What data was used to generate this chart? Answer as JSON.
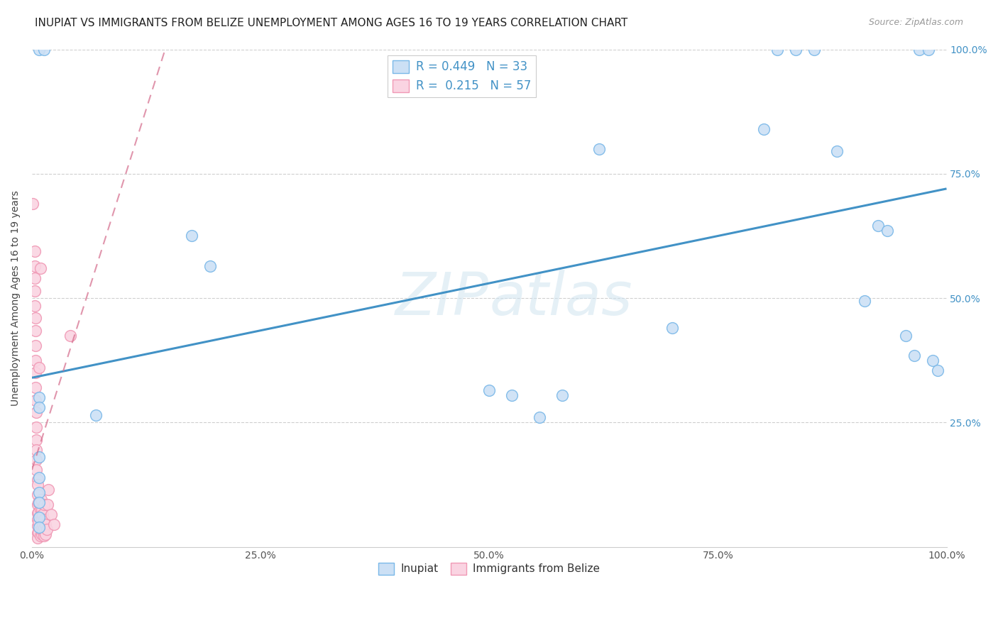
{
  "title": "INUPIAT VS IMMIGRANTS FROM BELIZE UNEMPLOYMENT AMONG AGES 16 TO 19 YEARS CORRELATION CHART",
  "source": "Source: ZipAtlas.com",
  "ylabel": "Unemployment Among Ages 16 to 19 years",
  "watermark": "ZIPatlas",
  "legend_labels": [
    "Inupiat",
    "Immigrants from Belize"
  ],
  "inupiat_R": "0.449",
  "inupiat_N": "33",
  "belize_R": "0.215",
  "belize_N": "57",
  "inupiat_color": "#7ab8e8",
  "inupiat_fill": "#cce0f5",
  "belize_color": "#f099b5",
  "belize_fill": "#fad4e2",
  "trend_blue": "#4292c6",
  "trend_pink": "#d46a8a",
  "inupiat_points": [
    [
      0.008,
      1.0
    ],
    [
      0.013,
      1.0
    ],
    [
      0.008,
      0.3
    ],
    [
      0.008,
      0.28
    ],
    [
      0.008,
      0.18
    ],
    [
      0.008,
      0.14
    ],
    [
      0.008,
      0.11
    ],
    [
      0.008,
      0.09
    ],
    [
      0.008,
      0.06
    ],
    [
      0.008,
      0.04
    ],
    [
      0.07,
      0.265
    ],
    [
      0.175,
      0.625
    ],
    [
      0.195,
      0.565
    ],
    [
      0.5,
      0.315
    ],
    [
      0.525,
      0.305
    ],
    [
      0.555,
      0.26
    ],
    [
      0.58,
      0.305
    ],
    [
      0.62,
      0.8
    ],
    [
      0.7,
      0.44
    ],
    [
      0.8,
      0.84
    ],
    [
      0.815,
      1.0
    ],
    [
      0.835,
      1.0
    ],
    [
      0.855,
      1.0
    ],
    [
      0.88,
      0.795
    ],
    [
      0.91,
      0.495
    ],
    [
      0.925,
      0.645
    ],
    [
      0.935,
      0.635
    ],
    [
      0.955,
      0.425
    ],
    [
      0.965,
      0.385
    ],
    [
      0.97,
      1.0
    ],
    [
      0.98,
      1.0
    ],
    [
      0.985,
      0.375
    ],
    [
      0.99,
      0.355
    ]
  ],
  "belize_points": [
    [
      0.001,
      0.69
    ],
    [
      0.003,
      0.595
    ],
    [
      0.003,
      0.565
    ],
    [
      0.003,
      0.54
    ],
    [
      0.003,
      0.515
    ],
    [
      0.003,
      0.485
    ],
    [
      0.004,
      0.46
    ],
    [
      0.004,
      0.435
    ],
    [
      0.004,
      0.405
    ],
    [
      0.004,
      0.375
    ],
    [
      0.004,
      0.35
    ],
    [
      0.004,
      0.32
    ],
    [
      0.004,
      0.295
    ],
    [
      0.005,
      0.27
    ],
    [
      0.005,
      0.24
    ],
    [
      0.005,
      0.215
    ],
    [
      0.005,
      0.195
    ],
    [
      0.005,
      0.175
    ],
    [
      0.005,
      0.155
    ],
    [
      0.006,
      0.135
    ],
    [
      0.006,
      0.125
    ],
    [
      0.006,
      0.105
    ],
    [
      0.006,
      0.085
    ],
    [
      0.006,
      0.068
    ],
    [
      0.006,
      0.055
    ],
    [
      0.006,
      0.042
    ],
    [
      0.006,
      0.028
    ],
    [
      0.006,
      0.018
    ],
    [
      0.007,
      0.09
    ],
    [
      0.007,
      0.07
    ],
    [
      0.007,
      0.05
    ],
    [
      0.007,
      0.03
    ],
    [
      0.008,
      0.36
    ],
    [
      0.009,
      0.56
    ],
    [
      0.009,
      0.022
    ],
    [
      0.009,
      0.075
    ],
    [
      0.01,
      0.065
    ],
    [
      0.01,
      0.095
    ],
    [
      0.011,
      0.075
    ],
    [
      0.011,
      0.055
    ],
    [
      0.011,
      0.038
    ],
    [
      0.011,
      0.025
    ],
    [
      0.012,
      0.045
    ],
    [
      0.012,
      0.032
    ],
    [
      0.012,
      0.065
    ],
    [
      0.013,
      0.085
    ],
    [
      0.013,
      0.055
    ],
    [
      0.013,
      0.038
    ],
    [
      0.013,
      0.022
    ],
    [
      0.015,
      0.045
    ],
    [
      0.015,
      0.025
    ],
    [
      0.016,
      0.035
    ],
    [
      0.017,
      0.085
    ],
    [
      0.018,
      0.115
    ],
    [
      0.021,
      0.065
    ],
    [
      0.024,
      0.045
    ],
    [
      0.042,
      0.425
    ]
  ],
  "xlim": [
    0.0,
    1.0
  ],
  "ylim": [
    0.0,
    1.0
  ],
  "xticks": [
    0.0,
    0.25,
    0.5,
    0.75,
    1.0
  ],
  "yticks": [
    0.25,
    0.5,
    0.75,
    1.0
  ],
  "xtick_labels": [
    "0.0%",
    "25.0%",
    "50.0%",
    "75.0%",
    "100.0%"
  ],
  "ytick_labels_right": [
    "25.0%",
    "50.0%",
    "75.0%",
    "100.0%"
  ],
  "blue_trend_x": [
    0.0,
    1.0
  ],
  "blue_trend_y": [
    0.34,
    0.72
  ],
  "pink_trend_x0": 0.0,
  "pink_trend_y0": 0.155,
  "pink_trend_slope": 5.8,
  "title_fontsize": 11,
  "label_fontsize": 10,
  "tick_fontsize": 10,
  "marker_size": 130,
  "background_color": "#ffffff",
  "grid_color": "#bbbbbb",
  "grid_alpha": 0.7
}
